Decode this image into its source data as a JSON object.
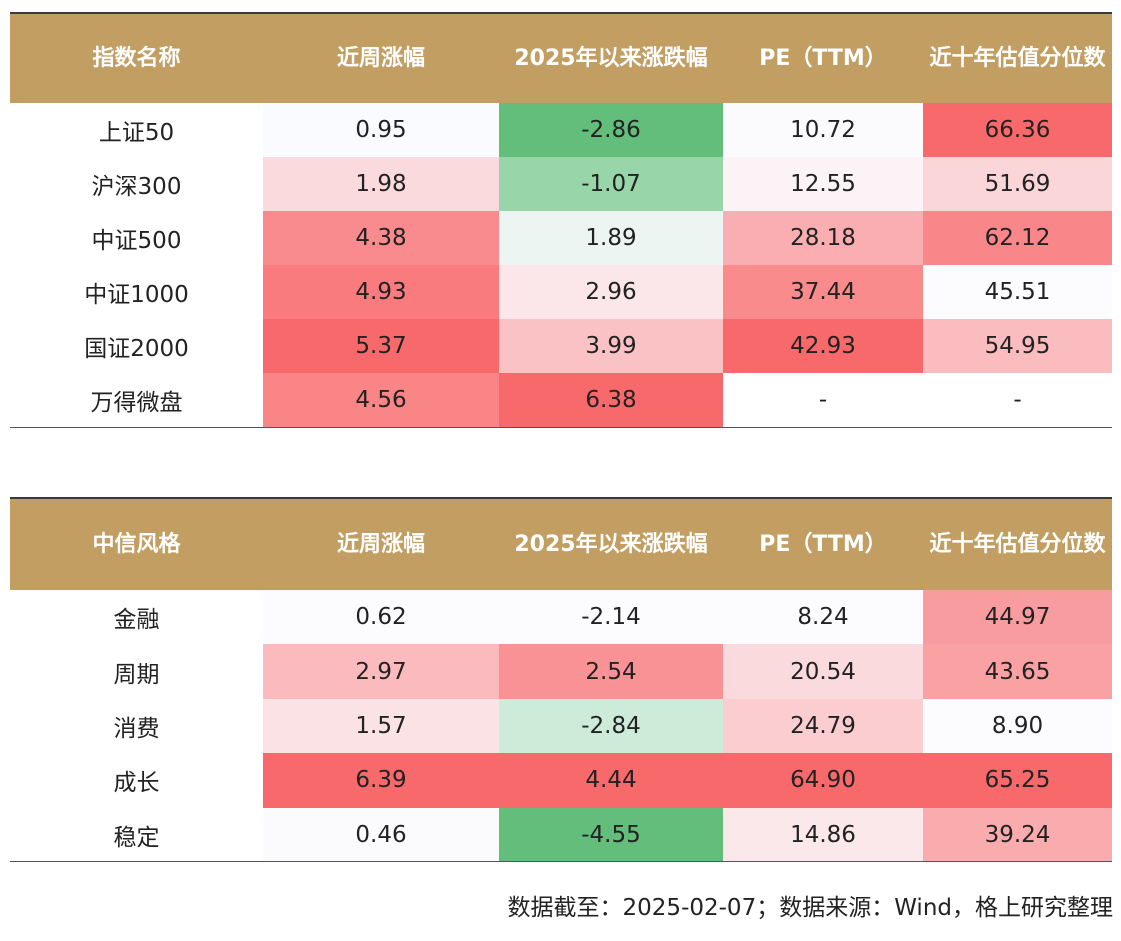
{
  "tables": [
    {
      "headers": [
        "指数名称",
        "近周涨幅",
        "2025年以来涨跌幅",
        "PE（TTM）",
        "近十年估值分位数"
      ],
      "rows": [
        {
          "cells": [
            "上证50",
            "0.95",
            "-2.86",
            "10.72",
            "66.36"
          ],
          "bg": [
            "#ffffff",
            "#fafbfe",
            "#63be7b",
            "#fbfbfe",
            "#f8696b"
          ]
        },
        {
          "cells": [
            "沪深300",
            "1.98",
            "-1.07",
            "12.55",
            "51.69"
          ],
          "bg": [
            "#ffffff",
            "#fbdadd",
            "#98d5a8",
            "#fcf3f6",
            "#fbd6d9"
          ]
        },
        {
          "cells": [
            "中证500",
            "4.38",
            "1.89",
            "28.18",
            "62.12"
          ],
          "bg": [
            "#ffffff",
            "#f98b8e",
            "#edf5f2",
            "#faaeb1",
            "#f98789"
          ]
        },
        {
          "cells": [
            "中证1000",
            "4.93",
            "2.96",
            "37.44",
            "45.51"
          ],
          "bg": [
            "#ffffff",
            "#f97b7d",
            "#fbe6e9",
            "#f98b8d",
            "#fcfcff"
          ]
        },
        {
          "cells": [
            "国证2000",
            "5.37",
            "3.99",
            "42.93",
            "54.95"
          ],
          "bg": [
            "#ffffff",
            "#f8696b",
            "#fac2c5",
            "#f8696b",
            "#fbbcbf"
          ]
        },
        {
          "cells": [
            "万得微盘",
            "4.56",
            "6.38",
            "-",
            "-"
          ],
          "bg": [
            "#ffffff",
            "#f98587",
            "#f8696b",
            "#ffffff",
            "#ffffff"
          ]
        }
      ]
    },
    {
      "headers": [
        "中信风格",
        "近周涨幅",
        "2025年以来涨跌幅",
        "PE（TTM）",
        "近十年估值分位数"
      ],
      "rows": [
        {
          "cells": [
            "金融",
            "0.62",
            "-2.14",
            "8.24",
            "44.97"
          ],
          "bg": [
            "#ffffff",
            "#fcfcff",
            "#fcfcff",
            "#fcfcff",
            "#f99c9f"
          ]
        },
        {
          "cells": [
            "周期",
            "2.97",
            "2.54",
            "20.54",
            "43.65"
          ],
          "bg": [
            "#ffffff",
            "#fbbabd",
            "#f99295",
            "#fbdadd",
            "#f9a1a3"
          ]
        },
        {
          "cells": [
            "消费",
            "1.57",
            "-2.84",
            "24.79",
            "8.90"
          ],
          "bg": [
            "#ffffff",
            "#fbe2e5",
            "#cdebd9",
            "#fbcdd0",
            "#fcfcff"
          ]
        },
        {
          "cells": [
            "成长",
            "6.39",
            "4.44",
            "64.90",
            "65.25"
          ],
          "bg": [
            "#ffffff",
            "#f8696b",
            "#f8696b",
            "#f8696b",
            "#f8696b"
          ]
        },
        {
          "cells": [
            "稳定",
            "0.46",
            "-4.55",
            "14.86",
            "39.24"
          ],
          "bg": [
            "#ffffff",
            "#fbfbfe",
            "#63be7b",
            "#fbe8eb",
            "#faabad"
          ]
        }
      ]
    }
  ],
  "source": "数据截至：2025-02-07；数据来源：Wind，格上研究整理",
  "chart_data": {
    "type": "table",
    "tables": [
      {
        "columns": [
          "指数名称",
          "近周涨幅",
          "2025年以来涨跌幅",
          "PE（TTM）",
          "近十年估值分位数"
        ],
        "rows": [
          [
            "上证50",
            "0.95",
            "-2.86",
            "10.72",
            "66.36"
          ],
          [
            "沪深300",
            "1.98",
            "-1.07",
            "12.55",
            "51.69"
          ],
          [
            "中证500",
            "4.38",
            "1.89",
            "28.18",
            "62.12"
          ],
          [
            "中证1000",
            "4.93",
            "2.96",
            "37.44",
            "45.51"
          ],
          [
            "国证2000",
            "5.37",
            "3.99",
            "42.93",
            "54.95"
          ],
          [
            "万得微盘",
            "4.56",
            "6.38",
            "-",
            "-"
          ]
        ]
      },
      {
        "columns": [
          "中信风格",
          "近周涨幅",
          "2025年以来涨跌幅",
          "PE（TTM）",
          "近十年估值分位数"
        ],
        "rows": [
          [
            "金融",
            "0.62",
            "-2.14",
            "8.24",
            "44.97"
          ],
          [
            "周期",
            "2.97",
            "2.54",
            "20.54",
            "43.65"
          ],
          [
            "消费",
            "1.57",
            "-2.84",
            "24.79",
            "8.90"
          ],
          [
            "成长",
            "6.39",
            "4.44",
            "64.90",
            "65.25"
          ],
          [
            "稳定",
            "0.46",
            "-4.55",
            "14.86",
            "39.24"
          ]
        ]
      }
    ],
    "colors": {
      "header_bg": "#c29e62",
      "header_text": "#ffffff",
      "high": "#f8696b",
      "low": "#63be7b",
      "mid": "#fcfcff"
    }
  }
}
